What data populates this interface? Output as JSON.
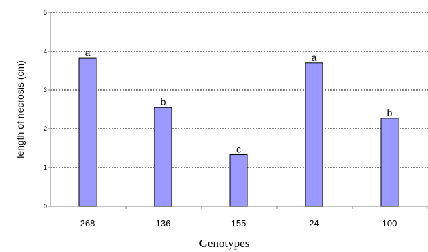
{
  "chart_data": {
    "type": "bar",
    "categories": [
      "268",
      "136",
      "155",
      "24",
      "100"
    ],
    "values": [
      3.82,
      2.55,
      1.33,
      3.7,
      2.27
    ],
    "labels": [
      "a",
      "b",
      "c",
      "a",
      "b"
    ],
    "xlabel": "Genotypes",
    "ylabel": "length of necrosis (cm)",
    "ylim": [
      0,
      5
    ],
    "yticks": [
      "0",
      "1",
      "2",
      "3",
      "4",
      "5"
    ],
    "grid": true,
    "bar_color": "#9999ff",
    "bar_edge_color": "#000000"
  }
}
